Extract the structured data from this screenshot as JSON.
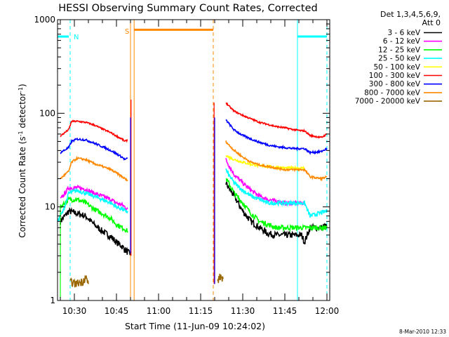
{
  "chart_data": {
    "type": "line",
    "title": "HESSI Observing Summary Count Rates, Corrected",
    "xlabel": "Start Time (11-Jun-09 10:24:02)",
    "ylabel": "Corrected Count Rate (s",
    "ylabel_sup1": "-1",
    "ylabel_mid": " detector",
    "ylabel_sup2": "-1",
    "ylabel_end": ")",
    "y_scale": "log",
    "ylim": [
      1,
      1000
    ],
    "xlim_minutes": [
      0,
      97
    ],
    "x_ticks": [
      {
        "label": "10:30",
        "min": 6
      },
      {
        "label": "10:45",
        "min": 21
      },
      {
        "label": "11:00",
        "min": 36
      },
      {
        "label": "11:15",
        "min": 51
      },
      {
        "label": "11:30",
        "min": 66
      },
      {
        "label": "11:45",
        "min": 81
      },
      {
        "label": "12:00",
        "min": 96
      }
    ],
    "y_ticks": [
      {
        "label": "1",
        "value": 1
      },
      {
        "label": "10",
        "value": 10
      },
      {
        "label": "100",
        "value": 100
      },
      {
        "label": "1000",
        "value": 1000
      }
    ],
    "legend_header": [
      "Det 1,3,4,5,6,9,",
      "Att 0"
    ],
    "series": [
      {
        "name": "3 - 6 keV",
        "color": "#000000",
        "x": [
          1,
          4,
          7,
          10,
          13,
          16,
          19,
          21,
          23,
          24,
          25,
          26,
          60,
          61,
          63,
          66,
          69,
          72,
          75,
          78,
          81,
          84,
          87,
          88,
          90,
          94,
          96
        ],
        "y": [
          7,
          9,
          8.5,
          8,
          6.5,
          5.5,
          4.8,
          4.2,
          3.8,
          3.5,
          3.3,
          3.1,
          18,
          16,
          13,
          9,
          7,
          6,
          5.2,
          5,
          5,
          5,
          5,
          4.2,
          6,
          6,
          6.3
        ],
        "noise": 0.08
      },
      {
        "name": "6 - 12 keV",
        "color": "#ff00ff",
        "x": [
          1,
          4,
          7,
          10,
          13,
          16,
          19,
          21,
          23,
          24,
          25,
          60,
          61,
          63,
          66,
          69,
          72,
          75,
          78,
          81,
          84,
          87,
          88
        ],
        "y": [
          12,
          16,
          16,
          15.5,
          14,
          13,
          12,
          11,
          10.5,
          10,
          9.5,
          32,
          28,
          22,
          18,
          15,
          13,
          12,
          11.5,
          11,
          11,
          11,
          11
        ],
        "noise": 0.05
      },
      {
        "name": "12 - 25 keV",
        "color": "#00ff00",
        "x": [
          1,
          4,
          7,
          10,
          13,
          16,
          19,
          21,
          23,
          24,
          25,
          60,
          61,
          63,
          66,
          69,
          72,
          75,
          78,
          81,
          84,
          87,
          88,
          90,
          94,
          96
        ],
        "y": [
          10,
          12,
          12,
          11,
          9.5,
          8.5,
          7.5,
          6.5,
          6,
          5.8,
          5.5,
          20,
          18,
          14,
          11,
          8.5,
          7,
          6.5,
          6,
          6,
          6,
          6,
          6,
          6,
          6,
          6
        ],
        "noise": 0.06
      },
      {
        "name": "25 - 50 keV",
        "color": "#00ffff",
        "x": [
          0,
          1,
          2,
          4,
          7,
          10,
          13,
          16,
          19,
          21,
          23,
          24,
          25,
          60,
          61,
          63,
          66,
          69,
          72,
          75,
          78,
          81,
          84,
          87,
          88,
          90,
          93,
          96
        ],
        "y": [
          7,
          8,
          9,
          14,
          15,
          14,
          13,
          12,
          11,
          10,
          9.5,
          9,
          9,
          25,
          22,
          18,
          15,
          13,
          12,
          11,
          11,
          11,
          11,
          11,
          11,
          8,
          8.5,
          9
        ],
        "noise": 0.05
      },
      {
        "name": "50 - 100 keV",
        "color": "#ffff00",
        "x": [
          60,
          61,
          63,
          66,
          69,
          72,
          75,
          78,
          81,
          84,
          87,
          88
        ],
        "y": [
          36,
          34,
          32,
          30,
          28.5,
          27.5,
          27,
          26.5,
          26,
          26,
          26,
          26
        ],
        "noise": 0.03
      },
      {
        "name": "100 - 300 keV",
        "color": "#ff0000",
        "x": [
          1,
          4,
          5,
          7,
          10,
          13,
          16,
          19,
          21,
          23,
          24,
          25,
          60,
          61,
          63,
          66,
          69,
          72,
          75,
          78,
          81,
          84,
          87,
          88,
          90,
          94,
          96
        ],
        "y": [
          57,
          67,
          82,
          82,
          80,
          75,
          68,
          62,
          57,
          53,
          50,
          52,
          130,
          120,
          105,
          95,
          87,
          80,
          76,
          72,
          70,
          67,
          65,
          65,
          58,
          55,
          60
        ],
        "noise": 0.02
      },
      {
        "name": "300 - 800 keV",
        "color": "#0000ff",
        "x": [
          1,
          4,
          5,
          7,
          10,
          13,
          16,
          19,
          21,
          23,
          24,
          25,
          60,
          61,
          63,
          66,
          69,
          72,
          75,
          78,
          81,
          84,
          87,
          88,
          90,
          94,
          96
        ],
        "y": [
          38,
          43,
          50,
          53,
          52,
          48,
          44,
          40,
          37,
          34,
          32,
          33,
          85,
          78,
          66,
          58,
          53,
          49,
          46,
          44,
          43,
          42,
          42,
          42,
          38,
          39,
          42
        ],
        "noise": 0.025
      },
      {
        "name": "800 - 7000 keV",
        "color": "#ff8800",
        "x": [
          1,
          4,
          5,
          7,
          10,
          13,
          16,
          19,
          21,
          23,
          24,
          25,
          60,
          61,
          63,
          66,
          69,
          72,
          75,
          78,
          81,
          84,
          87,
          88,
          90,
          94,
          96
        ],
        "y": [
          20,
          24,
          30,
          33,
          32,
          29,
          27,
          25,
          23,
          21,
          20,
          19,
          50,
          46,
          40,
          34,
          30,
          28,
          27,
          26,
          25,
          25,
          25,
          25,
          21,
          20,
          21
        ],
        "noise": 0.025
      },
      {
        "name": "7000 - 20000 keV",
        "color": "#996600",
        "x": [
          4.5,
          5,
          6,
          9,
          10,
          11,
          57,
          58,
          59
        ],
        "y": [
          1.5,
          1.6,
          1.5,
          1.6,
          1.8,
          1.5,
          1.6,
          1.8,
          1.7
        ],
        "noise": 0.1
      }
    ],
    "annotations": [
      {
        "label": "N",
        "color": "#00ffff",
        "x_min": 4.5
      },
      {
        "label": "S",
        "color": "#ff8800",
        "x_min": 27
      }
    ],
    "timestamp": "8-Mar-2010 12:33"
  }
}
